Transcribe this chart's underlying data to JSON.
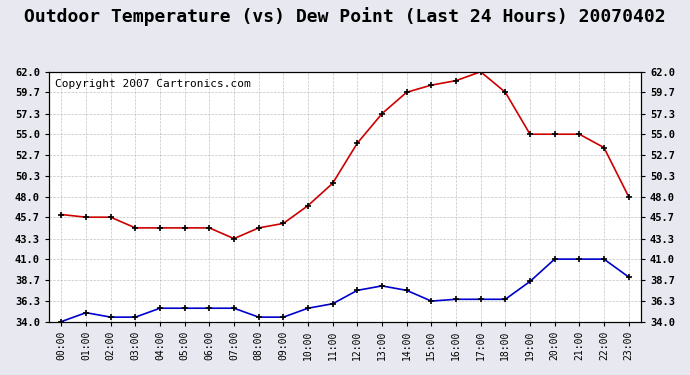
{
  "title": "Outdoor Temperature (vs) Dew Point (Last 24 Hours) 20070402",
  "copyright": "Copyright 2007 Cartronics.com",
  "x_labels": [
    "00:00",
    "01:00",
    "02:00",
    "03:00",
    "04:00",
    "05:00",
    "06:00",
    "07:00",
    "08:00",
    "09:00",
    "10:00",
    "11:00",
    "12:00",
    "13:00",
    "14:00",
    "15:00",
    "16:00",
    "17:00",
    "18:00",
    "19:00",
    "20:00",
    "21:00",
    "22:00",
    "23:00"
  ],
  "temp_data": [
    46.0,
    45.7,
    45.7,
    44.5,
    44.5,
    44.5,
    44.5,
    43.3,
    44.5,
    45.0,
    47.0,
    49.5,
    54.0,
    57.3,
    59.7,
    60.5,
    61.0,
    62.0,
    59.7,
    55.0,
    55.0,
    55.0,
    53.5,
    48.0
  ],
  "dew_data": [
    34.0,
    35.0,
    34.5,
    34.5,
    35.5,
    35.5,
    35.5,
    35.5,
    34.5,
    34.5,
    35.5,
    36.0,
    37.5,
    38.0,
    37.5,
    36.3,
    36.5,
    36.5,
    36.5,
    38.5,
    41.0,
    41.0,
    41.0,
    39.0
  ],
  "ylim": [
    34.0,
    62.0
  ],
  "yticks": [
    34.0,
    36.3,
    38.7,
    41.0,
    43.3,
    45.7,
    48.0,
    50.3,
    52.7,
    55.0,
    57.3,
    59.7,
    62.0
  ],
  "temp_color": "#cc0000",
  "dew_color": "#0000cc",
  "bg_color": "#e8e8f0",
  "plot_bg": "#ffffff",
  "grid_color": "#aaaaaa",
  "title_fontsize": 13,
  "copyright_fontsize": 8
}
